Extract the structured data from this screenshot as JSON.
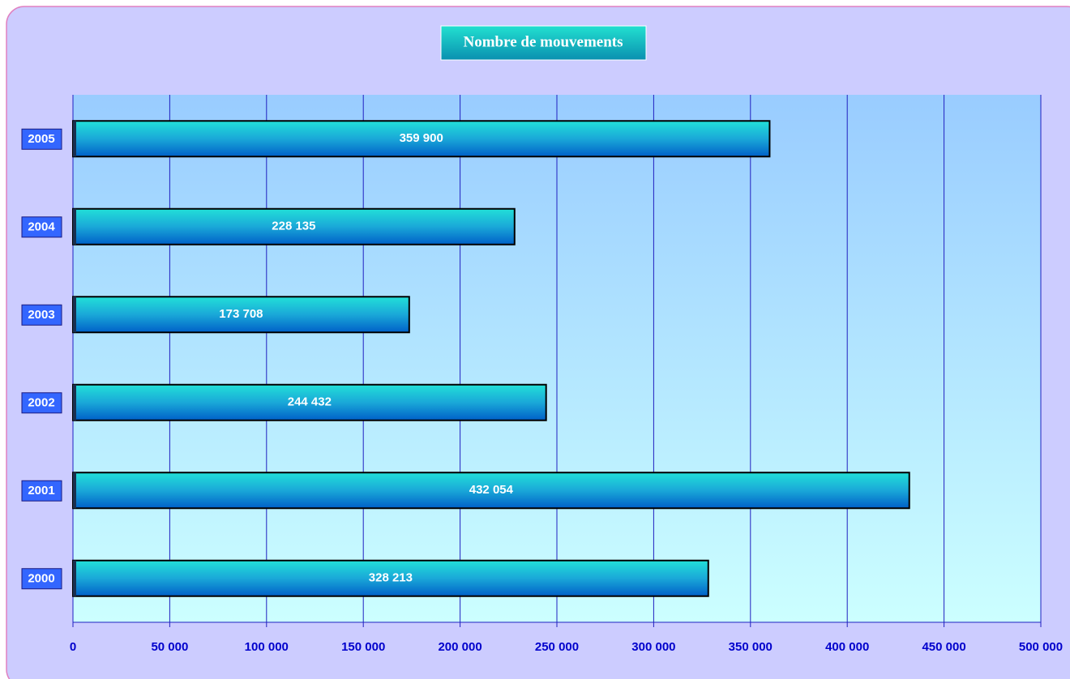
{
  "chart_data": {
    "type": "bar",
    "orientation": "horizontal",
    "title": "Nombre de mouvements",
    "categories": [
      "2000",
      "2001",
      "2002",
      "2003",
      "2004",
      "2005"
    ],
    "values": [
      328213,
      432054,
      244432,
      173708,
      228135,
      359900
    ],
    "value_labels": [
      "328 213",
      "432 054",
      "244 432",
      "173 708",
      "228 135",
      "359 900"
    ],
    "xlim": [
      0,
      500000
    ],
    "xticks": [
      0,
      {
        "value": 50000,
        "label": "50 000"
      },
      {
        "value": 100000,
        "label": "100 000"
      },
      {
        "value": 150000,
        "label": "150 000"
      },
      {
        "value": 200000,
        "label": "200 000"
      },
      {
        "value": 250000,
        "label": "250 000"
      },
      {
        "value": 300000,
        "label": "300 000"
      },
      {
        "value": 350000,
        "label": "350 000"
      },
      {
        "value": 400000,
        "label": "400 000"
      },
      {
        "value": 450000,
        "label": "450 000"
      },
      {
        "value": 500000,
        "label": "500 000"
      }
    ],
    "grid": true
  }
}
